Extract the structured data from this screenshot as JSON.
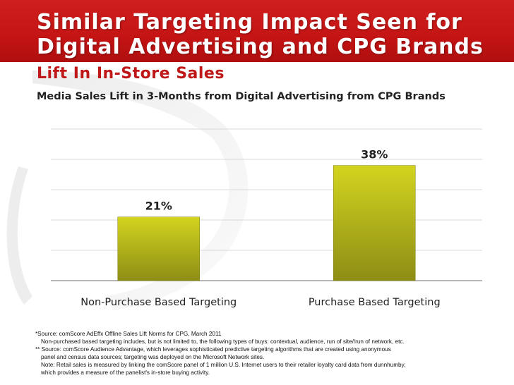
{
  "slide": {
    "title_line1": "Similar Targeting Impact Seen for",
    "title_line2": "Digital Advertising and CPG Brands",
    "subtitle": "Lift In In-Store Sales",
    "chart_title": "Media Sales Lift in 3-Months from Digital Advertising from CPG Brands"
  },
  "colors": {
    "header_red": "#c41414",
    "bar_top": "#d2d41f",
    "bar_bottom": "#8e8d15",
    "subtitle_red": "#c01818"
  },
  "chart_data": {
    "type": "bar",
    "title": "Media Sales Lift in 3-Months from Digital Advertising from CPG Brands",
    "categories": [
      "Non-Purchase Based Targeting",
      "Purchase Based Targeting"
    ],
    "values": [
      21,
      38
    ],
    "data_labels": [
      "21%",
      "38%"
    ],
    "xlabel": "",
    "ylabel": "",
    "ylim": [
      0,
      50
    ],
    "grid": true,
    "legend": "none"
  },
  "footnotes": [
    "*Source:  comScore AdEffx Offline Sales Lift Norms for CPG, March 2011",
    "Non-purchased based targeting includes, but is not limited to, the following types of buys: contextual, audience, run of site//run of network, etc.",
    "** Source: comScore Audience Advantage, which leverages sophisticated predictive targeting algorithms that are created using anonymous",
    "panel and census data sources; targeting was deployed on the Microsoft Network sites.",
    "Note: Retail sales is measured by linking the comScore panel of 1 million U.S. Internet users to their retailer loyalty card data from dunnhumby,",
    "which provides a measure of the panelist's in-store buying activity."
  ]
}
